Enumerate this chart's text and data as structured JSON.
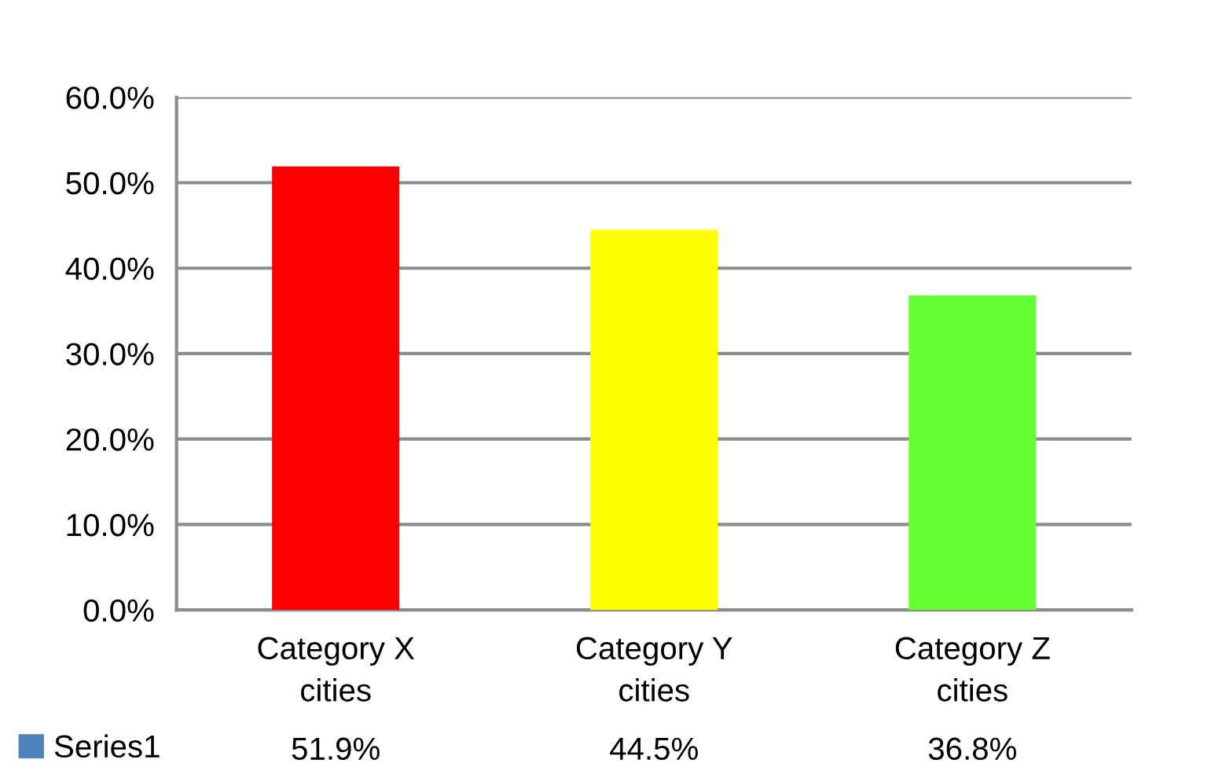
{
  "chart_data": {
    "type": "bar",
    "categories": [
      "Category X\ncities",
      "Category Y\ncities",
      "Category Z\ncities"
    ],
    "series": [
      {
        "name": "Series1",
        "color": "#4f81bd",
        "colors": [
          "#ff0000",
          "#ffff00",
          "#66ff33"
        ],
        "values": [
          51.9,
          44.5,
          36.8
        ],
        "value_labels": [
          "51.9%",
          "44.5%",
          "36.8%"
        ]
      }
    ],
    "ylim": [
      0,
      60
    ],
    "yticks": [
      {
        "value": 0,
        "label": "0.0%"
      },
      {
        "value": 10,
        "label": "10.0%"
      },
      {
        "value": 20,
        "label": "20.0%"
      },
      {
        "value": 30,
        "label": "30.0%"
      },
      {
        "value": 40,
        "label": "40.0%"
      },
      {
        "value": 50,
        "label": "50.0%"
      },
      {
        "value": 60,
        "label": "60.0%"
      }
    ],
    "grid": "y",
    "legend": "bottom left"
  }
}
